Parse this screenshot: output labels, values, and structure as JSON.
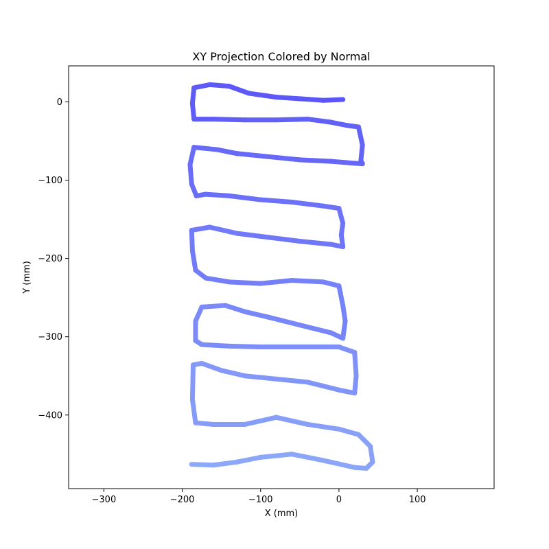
{
  "chart_data": {
    "type": "line",
    "title": "XY Projection Colored by Normal",
    "xlabel": "X (mm)",
    "ylabel": "Y (mm)",
    "xlim": [
      -345,
      198
    ],
    "ylim": [
      -494,
      46
    ],
    "xticks": [
      -300,
      -200,
      -100,
      0,
      100
    ],
    "yticks": [
      0,
      -100,
      -200,
      -300,
      -400
    ],
    "grid": false,
    "legend": "none",
    "colors": {
      "start": "#5b55f7",
      "end": "#8eaaf8"
    },
    "series": [
      {
        "x": [
          5,
          -20,
          -50,
          -80,
          -115,
          -140,
          -165,
          -185,
          -187,
          -185,
          -160,
          -120,
          -80,
          -40,
          -10,
          10,
          25,
          30,
          28,
          30,
          15,
          -10,
          -50,
          -90,
          -130,
          -155,
          -185,
          -190,
          -188,
          -182,
          -170,
          -140,
          -100,
          -60,
          -20,
          0,
          5,
          3,
          5,
          -10,
          -50,
          -90,
          -130,
          -165,
          -188,
          -187,
          -183,
          -170,
          -140,
          -100,
          -60,
          -20,
          0,
          5,
          8,
          5,
          -10,
          -50,
          -90,
          -120,
          -145,
          -175,
          -183,
          -183,
          -175,
          -140,
          -100,
          -60,
          -20,
          0,
          20,
          22,
          20,
          0,
          -40,
          -80,
          -120,
          -150,
          -175,
          -186,
          -187,
          -183,
          -160,
          -120,
          -80,
          -40,
          0,
          25,
          40,
          43,
          35,
          20,
          -20,
          -60,
          -100,
          -130,
          -160,
          -188
        ],
        "y": [
          3,
          2,
          4,
          6,
          11,
          20,
          22,
          18,
          -2,
          -22,
          -22,
          -23,
          -23,
          -22,
          -26,
          -30,
          -32,
          -55,
          -75,
          -79,
          -78,
          -76,
          -74,
          -70,
          -66,
          -61,
          -58,
          -80,
          -105,
          -120,
          -118,
          -120,
          -125,
          -128,
          -133,
          -136,
          -155,
          -170,
          -185,
          -182,
          -178,
          -173,
          -168,
          -160,
          -164,
          -190,
          -215,
          -225,
          -230,
          -232,
          -228,
          -230,
          -235,
          -260,
          -280,
          -302,
          -295,
          -285,
          -275,
          -268,
          -260,
          -262,
          -280,
          -305,
          -310,
          -312,
          -313,
          -313,
          -313,
          -313,
          -320,
          -350,
          -372,
          -368,
          -358,
          -354,
          -350,
          -343,
          -334,
          -336,
          -380,
          -410,
          -412,
          -412,
          -403,
          -412,
          -418,
          -425,
          -440,
          -460,
          -468,
          -467,
          -458,
          -450,
          -454,
          -460,
          -464,
          -463
        ]
      }
    ]
  }
}
